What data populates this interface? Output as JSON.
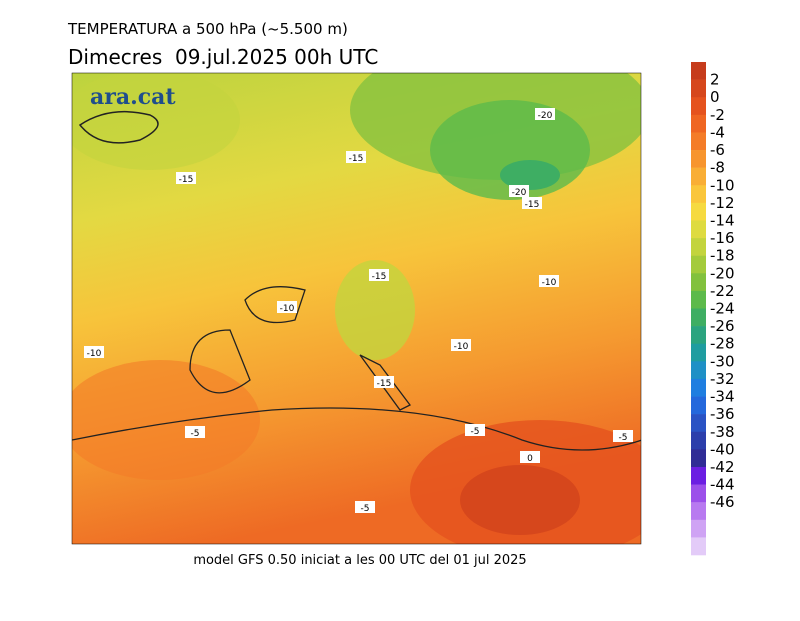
{
  "header": {
    "title": "TEMPERATURA a 500 hPa (~5.500 m)",
    "subtitle": "Dimecres  09.jul.2025 00h UTC"
  },
  "logo": "ara.cat",
  "footer": "model GFS 0.50 iniciat a les 00 UTC del 01 jul 2025",
  "contour_labels": [
    -20,
    -15,
    -15,
    -20,
    -15,
    -15,
    -10,
    -10,
    -10,
    -10,
    -15,
    -5,
    -5,
    -5,
    0,
    -5
  ],
  "colorbar": {
    "levels": [
      2,
      0,
      -2,
      -4,
      -6,
      -8,
      -10,
      -12,
      -14,
      -16,
      -18,
      -20,
      -22,
      -24,
      -26,
      -28,
      -30,
      -32,
      -34,
      -36,
      -38,
      -40,
      -42,
      -44,
      -46
    ],
    "colors": [
      "#c63c1c",
      "#d6471c",
      "#e5531e",
      "#ef6622",
      "#f47c28",
      "#f7952e",
      "#f9ae35",
      "#fac63b",
      "#f6da40",
      "#dedb40",
      "#c3d43d",
      "#a4cb3b",
      "#82c13d",
      "#5cba4b",
      "#3eae63",
      "#2ba47f",
      "#1f9da0",
      "#1f90c6",
      "#1f7ee0",
      "#2468dc",
      "#2a53c4",
      "#2c3eab",
      "#302c96",
      "#6b1ee2",
      "#9c50ea",
      "#b87af0",
      "#cfa3f4",
      "#e3cbf8"
    ]
  }
}
